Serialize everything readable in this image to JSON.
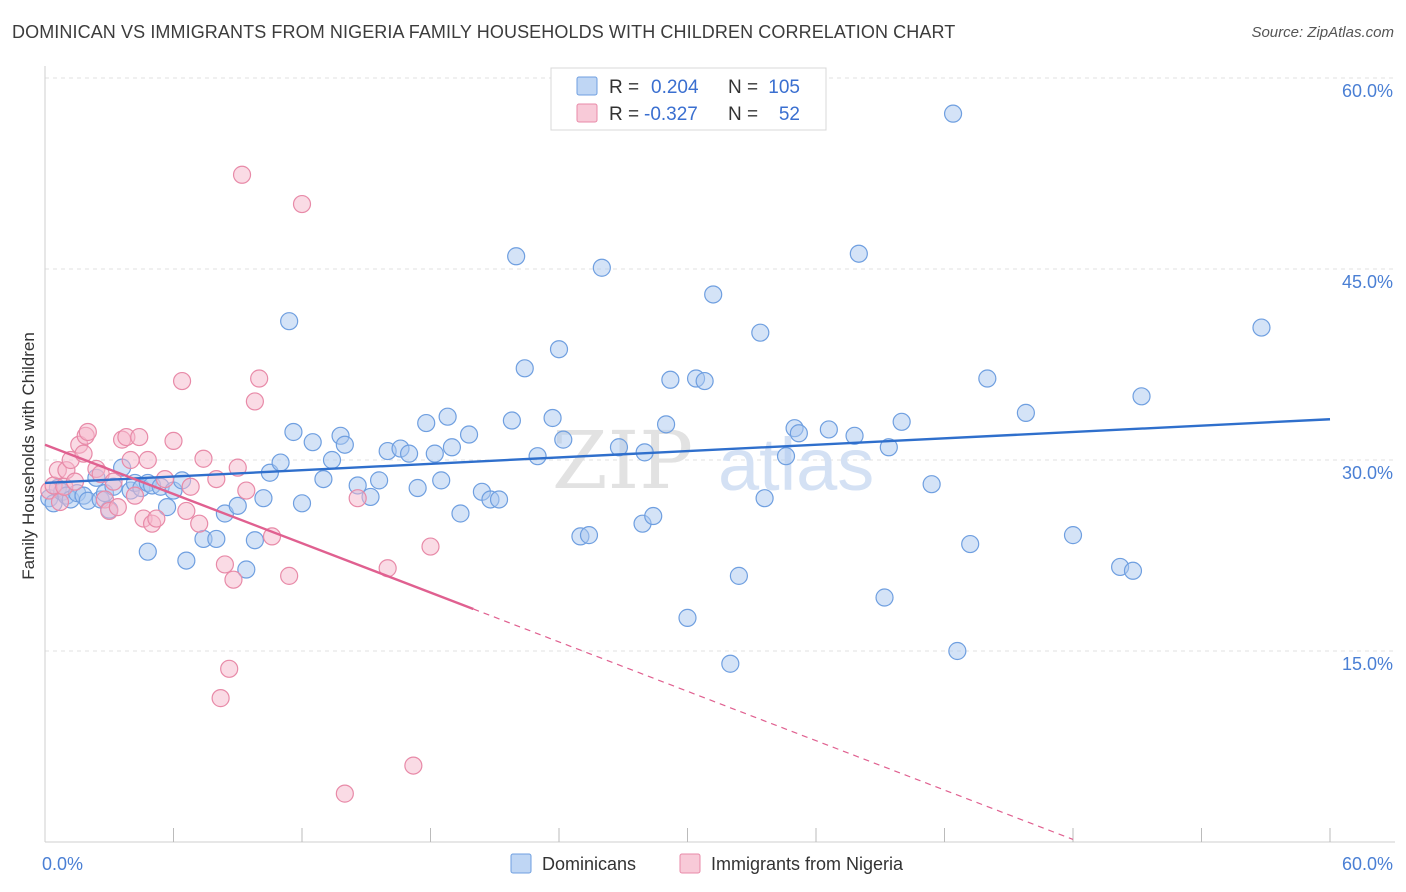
{
  "header": {
    "title": "DOMINICAN VS IMMIGRANTS FROM NIGERIA FAMILY HOUSEHOLDS WITH CHILDREN CORRELATION CHART",
    "source": "Source: ZipAtlas.com"
  },
  "watermark": {
    "zip": "ZIP",
    "atlas": "atlas"
  },
  "colors": {
    "blue_fill": "#aac8f0",
    "blue_stroke": "#6f9fe0",
    "blue_line": "#2f6fcc",
    "pink_fill": "#f5b8cb",
    "pink_stroke": "#e88aa8",
    "pink_line": "#e06090",
    "grid": "#e2e2e2",
    "tick_label": "#4a7fd4"
  },
  "chart_data": {
    "type": "scatter",
    "ylabel": "Family Households with Children",
    "xlim": [
      0,
      60
    ],
    "ylim": [
      0,
      60
    ],
    "x_tick_labels": [
      {
        "value": 0,
        "label": "0.0%"
      },
      {
        "value": 60,
        "label": "60.0%"
      }
    ],
    "y_tick_labels": [
      {
        "value": 15,
        "label": "15.0%"
      },
      {
        "value": 30,
        "label": "30.0%"
      },
      {
        "value": 45,
        "label": "45.0%"
      },
      {
        "value": 60,
        "label": "60.0%"
      }
    ],
    "grid": true,
    "legend_position": "top-center",
    "stats": [
      {
        "r_label": "R =",
        "r_value": "0.204",
        "n_label": "N =",
        "n_value": "105"
      },
      {
        "r_label": "R =",
        "r_value": "-0.327",
        "n_label": "N =",
        "n_value": "52"
      }
    ],
    "series": [
      {
        "name": "Dominicans",
        "trend": {
          "x": [
            0,
            60
          ],
          "y": [
            28.2,
            33.2
          ]
        },
        "points": [
          [
            0.2,
            27.0
          ],
          [
            0.4,
            26.6
          ],
          [
            0.6,
            27.8
          ],
          [
            0.8,
            27.5
          ],
          [
            1.0,
            27.2
          ],
          [
            1.2,
            26.9
          ],
          [
            1.5,
            27.4
          ],
          [
            1.8,
            27.2
          ],
          [
            2.0,
            26.8
          ],
          [
            2.4,
            28.6
          ],
          [
            2.6,
            26.9
          ],
          [
            2.8,
            27.4
          ],
          [
            3.0,
            26.1
          ],
          [
            3.2,
            27.9
          ],
          [
            3.6,
            29.4
          ],
          [
            4.0,
            27.6
          ],
          [
            4.2,
            28.2
          ],
          [
            4.5,
            27.8
          ],
          [
            4.8,
            28.2
          ],
          [
            5.0,
            28.0
          ],
          [
            5.4,
            27.9
          ],
          [
            5.7,
            26.3
          ],
          [
            6.0,
            27.6
          ],
          [
            6.4,
            28.4
          ],
          [
            7.4,
            23.8
          ],
          [
            8.0,
            23.8
          ],
          [
            8.4,
            25.8
          ],
          [
            9.0,
            26.4
          ],
          [
            9.4,
            21.4
          ],
          [
            9.8,
            23.7
          ],
          [
            6.6,
            22.1
          ],
          [
            4.8,
            22.8
          ],
          [
            10.2,
            27.0
          ],
          [
            10.5,
            29.0
          ],
          [
            11.0,
            29.8
          ],
          [
            11.4,
            40.9
          ],
          [
            11.6,
            32.2
          ],
          [
            12.0,
            26.6
          ],
          [
            12.5,
            31.4
          ],
          [
            13.0,
            28.5
          ],
          [
            13.4,
            30.0
          ],
          [
            13.8,
            31.9
          ],
          [
            14.0,
            31.2
          ],
          [
            14.6,
            28.0
          ],
          [
            15.2,
            27.1
          ],
          [
            15.6,
            28.4
          ],
          [
            16.0,
            30.7
          ],
          [
            16.6,
            30.9
          ],
          [
            17.0,
            30.5
          ],
          [
            17.4,
            27.8
          ],
          [
            17.8,
            32.9
          ],
          [
            18.2,
            30.5
          ],
          [
            18.5,
            28.4
          ],
          [
            18.8,
            33.4
          ],
          [
            19.0,
            31.0
          ],
          [
            19.4,
            25.8
          ],
          [
            19.8,
            32.0
          ],
          [
            20.4,
            27.5
          ],
          [
            20.8,
            26.9
          ],
          [
            21.2,
            26.9
          ],
          [
            21.8,
            33.1
          ],
          [
            22.0,
            46.0
          ],
          [
            22.4,
            37.2
          ],
          [
            23.0,
            30.3
          ],
          [
            23.7,
            33.3
          ],
          [
            24.0,
            38.7
          ],
          [
            24.2,
            31.6
          ],
          [
            25.0,
            24.0
          ],
          [
            25.4,
            24.1
          ],
          [
            26.0,
            45.1
          ],
          [
            26.8,
            31.0
          ],
          [
            27.9,
            25.0
          ],
          [
            28.0,
            30.6
          ],
          [
            28.4,
            25.6
          ],
          [
            29.0,
            32.8
          ],
          [
            29.2,
            36.3
          ],
          [
            30.0,
            17.6
          ],
          [
            30.4,
            36.4
          ],
          [
            30.8,
            36.2
          ],
          [
            31.2,
            43.0
          ],
          [
            32.0,
            14.0
          ],
          [
            32.4,
            20.9
          ],
          [
            33.4,
            40.0
          ],
          [
            33.6,
            27.0
          ],
          [
            34.6,
            30.3
          ],
          [
            35.0,
            32.5
          ],
          [
            35.2,
            32.1
          ],
          [
            36.6,
            32.4
          ],
          [
            37.8,
            31.9
          ],
          [
            38.0,
            46.2
          ],
          [
            39.2,
            19.2
          ],
          [
            39.4,
            31.0
          ],
          [
            40.0,
            33.0
          ],
          [
            41.4,
            28.1
          ],
          [
            42.4,
            57.2
          ],
          [
            42.6,
            15.0
          ],
          [
            43.2,
            23.4
          ],
          [
            44.0,
            36.4
          ],
          [
            45.8,
            33.7
          ],
          [
            48.0,
            24.1
          ],
          [
            50.2,
            21.6
          ],
          [
            50.8,
            21.3
          ],
          [
            51.2,
            35.0
          ],
          [
            56.8,
            40.4
          ]
        ]
      },
      {
        "name": "Immigrants from Nigeria",
        "trend": {
          "x": [
            0,
            20
          ],
          "y": [
            31.2,
            18.3
          ]
        },
        "trend_extension": {
          "x": [
            20,
            48
          ],
          "y": [
            18.3,
            0.2
          ]
        },
        "points": [
          [
            0.2,
            27.6
          ],
          [
            0.4,
            28.0
          ],
          [
            0.6,
            29.2
          ],
          [
            0.7,
            26.7
          ],
          [
            0.9,
            27.9
          ],
          [
            1.0,
            29.2
          ],
          [
            1.2,
            30.0
          ],
          [
            1.4,
            28.3
          ],
          [
            1.6,
            31.2
          ],
          [
            1.8,
            30.5
          ],
          [
            1.9,
            31.9
          ],
          [
            2.0,
            32.2
          ],
          [
            2.4,
            29.3
          ],
          [
            2.6,
            28.9
          ],
          [
            2.8,
            26.9
          ],
          [
            3.0,
            26.0
          ],
          [
            3.2,
            28.3
          ],
          [
            3.4,
            26.3
          ],
          [
            3.6,
            31.6
          ],
          [
            3.8,
            31.8
          ],
          [
            4.0,
            30.0
          ],
          [
            4.2,
            27.2
          ],
          [
            4.4,
            31.8
          ],
          [
            4.6,
            25.4
          ],
          [
            4.8,
            30.0
          ],
          [
            5.0,
            25.0
          ],
          [
            5.2,
            25.4
          ],
          [
            5.6,
            28.5
          ],
          [
            6.0,
            31.5
          ],
          [
            6.4,
            36.2
          ],
          [
            6.6,
            26.0
          ],
          [
            6.8,
            27.9
          ],
          [
            7.2,
            25.0
          ],
          [
            7.4,
            30.1
          ],
          [
            8.0,
            28.5
          ],
          [
            8.2,
            11.3
          ],
          [
            8.4,
            21.8
          ],
          [
            8.6,
            13.6
          ],
          [
            8.8,
            20.6
          ],
          [
            9.0,
            29.4
          ],
          [
            9.2,
            52.4
          ],
          [
            9.4,
            27.6
          ],
          [
            9.8,
            34.6
          ],
          [
            10.0,
            36.4
          ],
          [
            10.6,
            24.0
          ],
          [
            11.4,
            20.9
          ],
          [
            12.0,
            50.1
          ],
          [
            14.0,
            3.8
          ],
          [
            14.6,
            27.0
          ],
          [
            16.0,
            21.5
          ],
          [
            17.2,
            6.0
          ],
          [
            18.0,
            23.2
          ]
        ]
      }
    ]
  }
}
